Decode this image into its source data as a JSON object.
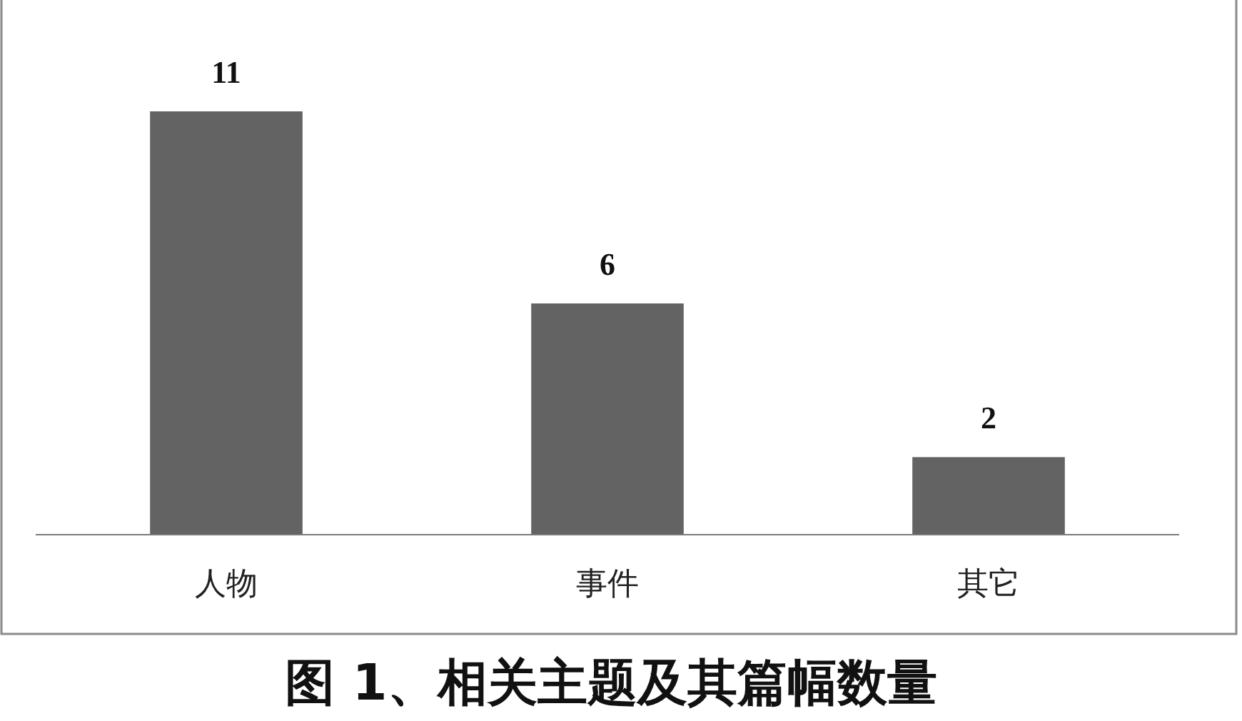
{
  "chart_data": {
    "type": "bar",
    "title": "图 1、相关主题及其篇幅数量",
    "categories": [
      "人物",
      "事件",
      "其它"
    ],
    "values": [
      11,
      6,
      2
    ],
    "color": "#636363",
    "data_labels": true
  }
}
